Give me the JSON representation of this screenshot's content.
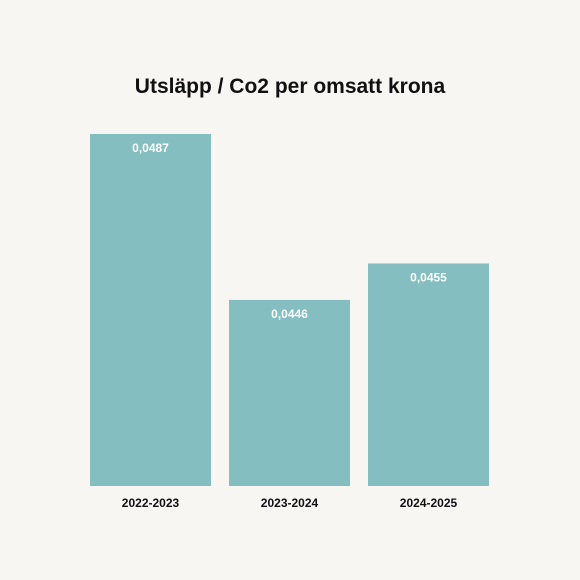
{
  "chart_data": {
    "type": "bar",
    "title": "Utsläpp / Co2 per omsatt krona",
    "categories": [
      "2022-2023",
      "2023-2024",
      "2024-2025"
    ],
    "values": [
      0.0487,
      0.0446,
      0.0455
    ],
    "value_labels": [
      "0,0487",
      "0,0446",
      "0,0455"
    ],
    "ylim": [
      0.04,
      0.0487
    ],
    "grid": false,
    "legend": "none",
    "bar_color": "#84bec1",
    "background_color": "#f7f6f3"
  }
}
